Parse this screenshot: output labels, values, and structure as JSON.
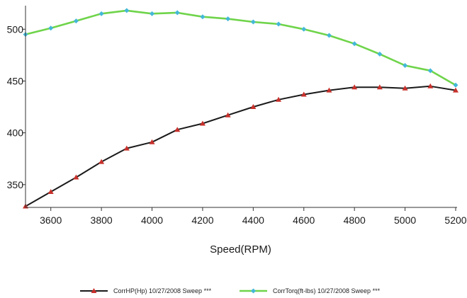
{
  "chart_data": {
    "type": "line",
    "title": "",
    "xlabel": "Speed(RPM)",
    "ylabel": "",
    "xlim": [
      3500,
      5200
    ],
    "ylim": [
      328,
      520
    ],
    "x_ticks": [
      3600,
      3800,
      4000,
      4200,
      4400,
      4600,
      4800,
      5000,
      5200
    ],
    "y_ticks": [
      350,
      400,
      450,
      500
    ],
    "grid": false,
    "legend_position": "bottom",
    "series": [
      {
        "name": "CorrHP(Hp) 10/27/2008 Sweep ***",
        "color": "#1a1a1a",
        "marker_color": "#c8302b",
        "marker": "triangle",
        "x": [
          3500,
          3600,
          3700,
          3800,
          3900,
          4000,
          4100,
          4200,
          4300,
          4400,
          4500,
          4600,
          4700,
          4800,
          4900,
          5000,
          5100,
          5200
        ],
        "y": [
          329,
          343,
          357,
          372,
          385,
          391,
          403,
          409,
          417,
          425,
          432,
          437,
          441,
          444,
          444,
          443,
          445,
          441
        ]
      },
      {
        "name": "CorrTorq(ft-lbs) 10/27/2008 Sweep ***",
        "color": "#6fd44a",
        "marker_color": "#44b8d8",
        "marker": "diamond",
        "x": [
          3500,
          3600,
          3700,
          3800,
          3900,
          4000,
          4100,
          4200,
          4300,
          4400,
          4500,
          4600,
          4700,
          4800,
          4900,
          5000,
          5100,
          5200
        ],
        "y": [
          495,
          501,
          508,
          515,
          518,
          515,
          516,
          512,
          510,
          507,
          505,
          500,
          494,
          486,
          476,
          465,
          460,
          446
        ]
      }
    ]
  }
}
